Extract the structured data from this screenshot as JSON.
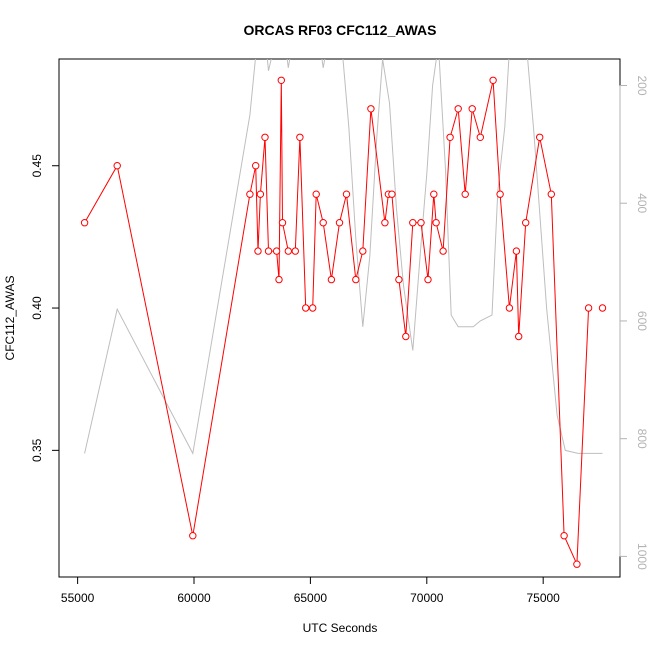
{
  "chart_data": {
    "type": "line",
    "title": "ORCAS RF03 CFC112_AWAS",
    "xlabel": "UTC Seconds",
    "ylabel": "CFC112_AWAS",
    "xlim": [
      54200,
      78300
    ],
    "ylim": [
      0.3055,
      0.4875
    ],
    "y2lim": [
      1035,
      155
    ],
    "y2_reversed": true,
    "x_ticks": [
      55000,
      60000,
      65000,
      70000,
      75000
    ],
    "y_ticks": [
      0.35,
      0.4,
      0.45
    ],
    "y2_ticks": [
      200,
      400,
      600,
      800,
      1000
    ],
    "grid": false,
    "legend": "none",
    "series": [
      {
        "role": "CFC112_AWAS",
        "color": "#ff0000",
        "style": "line-with-open-circles",
        "x": [
          55300,
          56700,
          59950,
          62400,
          62650,
          62750,
          62850,
          63050,
          63200,
          63550,
          63650,
          63750,
          63800,
          64050,
          64350,
          64550,
          64800,
          65100,
          65250,
          65550,
          65900,
          66250,
          66550,
          66950,
          67250,
          67600,
          68200,
          68350,
          68500,
          68800,
          69100,
          69400,
          69750,
          70050,
          70300,
          70400,
          70700,
          71000,
          71350,
          71650,
          71950,
          72300,
          72850,
          73150,
          73550,
          73850,
          73950,
          74250,
          74850,
          75350,
          75900,
          76450,
          76950,
          77550
        ],
        "y": [
          0.43,
          0.45,
          0.32,
          0.44,
          0.45,
          0.42,
          0.44,
          0.46,
          0.42,
          0.42,
          0.41,
          0.48,
          0.43,
          0.42,
          0.42,
          0.46,
          0.4,
          0.4,
          0.44,
          0.43,
          0.41,
          0.43,
          0.44,
          0.41,
          0.42,
          0.47,
          0.43,
          0.44,
          0.44,
          0.41,
          0.39,
          0.43,
          0.43,
          0.41,
          0.44,
          0.43,
          0.42,
          0.46,
          0.47,
          0.44,
          0.47,
          0.46,
          0.48,
          0.44,
          0.4,
          0.42,
          0.39,
          0.43,
          0.46,
          0.44,
          0.32,
          0.31,
          0.4,
          0.4
        ],
        "connected_through": 53
      },
      {
        "role": "altitude-trace",
        "color": "#bebebe",
        "style": "line",
        "x": [
          55300,
          56700,
          59950,
          62400,
          62750,
          62950,
          63200,
          63400,
          63600,
          63800,
          64050,
          64300,
          64550,
          64800,
          65050,
          65300,
          65550,
          65800,
          66050,
          66300,
          66650,
          66950,
          67250,
          67550,
          67850,
          68100,
          68400,
          68700,
          69000,
          69400,
          69750,
          70000,
          70250,
          70500,
          70800,
          71050,
          71350,
          71650,
          72000,
          72300,
          72800,
          73050,
          73350,
          73600,
          73900,
          74300,
          74600,
          75150,
          75600,
          75950,
          76500,
          77100,
          77550
        ],
        "y": [
          825,
          580,
          825,
          250,
          110,
          75,
          175,
          140,
          120,
          90,
          170,
          110,
          80,
          120,
          90,
          100,
          170,
          115,
          95,
          110,
          270,
          460,
          610,
          490,
          290,
          155,
          230,
          410,
          540,
          650,
          470,
          350,
          200,
          130,
          340,
          590,
          610,
          610,
          610,
          600,
          590,
          380,
          270,
          105,
          85,
          140,
          280,
          580,
          760,
          820,
          825,
          825,
          825
        ]
      }
    ]
  }
}
